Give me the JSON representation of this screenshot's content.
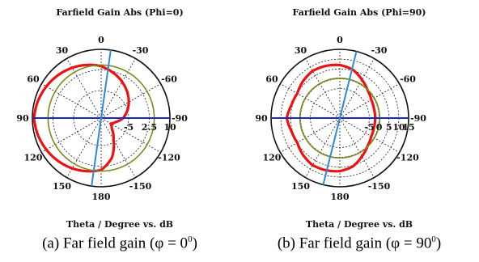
{
  "chart_data": [
    {
      "type": "polar",
      "title": "Farfield Gain Abs (Phi=0)",
      "xlabel": "Theta / Degree vs. dB",
      "caption_prefix": "(a) Far field gain (φ = 0",
      "caption_sup": "0",
      "caption_suffix": ")",
      "angle_ticks": [
        "0",
        "30",
        "60",
        "90",
        "120",
        "150",
        "180",
        "-150",
        "-120",
        "-90",
        "-60",
        "-30"
      ],
      "radial_ticks": [
        "-5",
        "2.5",
        "10"
      ],
      "radial_tick_values": [
        -5,
        2.5,
        10
      ],
      "r_range": [
        -15,
        10
      ],
      "grid": true,
      "series": [
        {
          "color": "#ee1111",
          "theta": [
            0,
            15,
            30,
            45,
            60,
            75,
            90,
            105,
            120,
            135,
            150,
            165,
            180,
            -165,
            -150,
            -135,
            -120,
            -105,
            -90
          ],
          "r": [
            3.9,
            5.0,
            6.1,
            7.1,
            8.0,
            8.8,
            9.4,
            8.8,
            8.0,
            7.1,
            6.1,
            5.0,
            3.9,
            0.0,
            -6.0,
            -9.5,
            -11.0,
            -9.5,
            -7.0
          ]
        },
        {
          "color": "#7a8a1a",
          "theta": [
            0,
            30,
            60,
            90,
            120,
            150,
            180,
            -150,
            -120,
            -90,
            -60,
            -30
          ],
          "r": [
            4.3,
            4.3,
            4.3,
            4.3,
            4.3,
            4.3,
            4.3,
            4.3,
            4.3,
            4.3,
            4.3,
            4.3
          ]
        }
      ],
      "reference_lines": [
        {
          "color": "#1a2ac0",
          "theta": 90
        },
        {
          "color": "#2a8ae0",
          "theta": -8
        }
      ]
    },
    {
      "type": "polar",
      "title": "Farfield Gain Abs (Phi=90)",
      "xlabel": "Theta / Degree vs. dB",
      "caption_prefix": "(b) Far field gain (φ = 90",
      "caption_sup": "0",
      "caption_suffix": ")",
      "angle_ticks": [
        "0",
        "30",
        "60",
        "90",
        "120",
        "150",
        "180",
        "-150",
        "-120",
        "-90",
        "-60",
        "-30"
      ],
      "radial_ticks": [
        "-5",
        "0",
        "5",
        "10",
        "15"
      ],
      "radial_tick_values": [
        -5,
        0,
        5,
        10,
        15
      ],
      "r_range": [
        -20,
        15
      ],
      "grid": true,
      "series": [
        {
          "color": "#ee1111",
          "theta": [
            0,
            15,
            30,
            45,
            60,
            75,
            90,
            105,
            120,
            135,
            150,
            165,
            180,
            -165,
            -150,
            -135,
            -120,
            -105,
            -90,
            -75,
            -60,
            -45,
            -30,
            -15
          ],
          "r": [
            7.0,
            7.5,
            7.7,
            6.5,
            5.0,
            5.5,
            7.0,
            5.5,
            5.0,
            6.5,
            7.7,
            7.5,
            7.0,
            5.5,
            2.5,
            0.0,
            -1.5,
            -2.0,
            -2.0,
            -2.0,
            -1.5,
            0.0,
            2.5,
            5.5
          ]
        },
        {
          "color": "#7a8a1a",
          "theta": [
            0,
            30,
            60,
            90,
            120,
            150,
            180,
            -150,
            -120,
            -90,
            -60,
            -30
          ],
          "r": [
            0.3,
            0.3,
            0.3,
            0.3,
            0.3,
            0.3,
            0.3,
            0.3,
            0.3,
            0.3,
            0.3,
            0.3
          ]
        }
      ],
      "reference_lines": [
        {
          "color": "#1a2ac0",
          "theta": 90
        },
        {
          "color": "#2a8ae0",
          "theta": -14
        }
      ]
    }
  ]
}
